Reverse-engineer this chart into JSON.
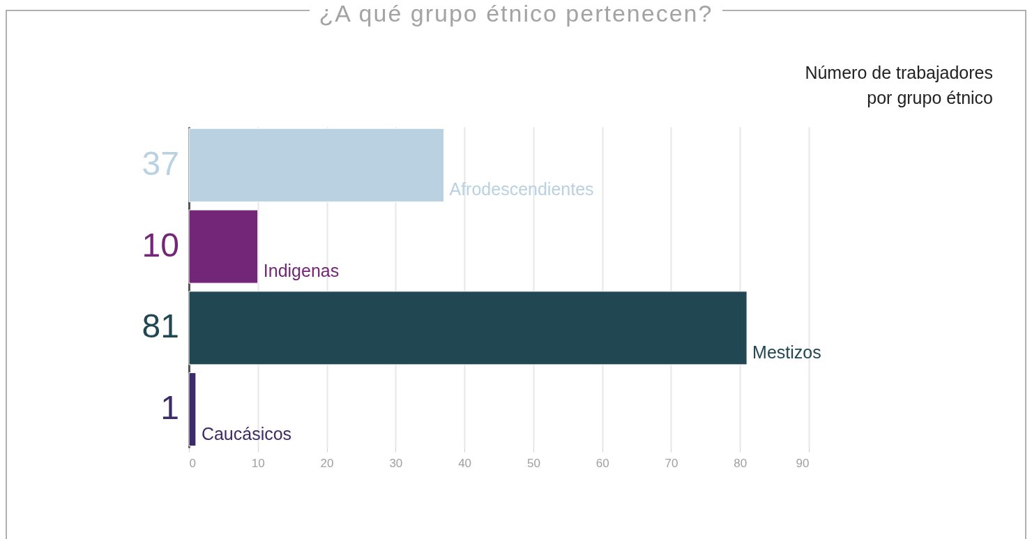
{
  "chart_data": {
    "type": "bar",
    "orientation": "horizontal",
    "title": "¿A qué grupo étnico pertenecen?",
    "subtitle": "Número de trabajadores\npor grupo étnico",
    "categories": [
      "Afrodescendientes",
      "Indigenas",
      "Mestizos",
      "Caucásicos"
    ],
    "values": [
      37,
      10,
      81,
      1
    ],
    "colors": [
      "#b9d1e0",
      "#732677",
      "#214752",
      "#3c2a6a"
    ],
    "xlim": [
      0,
      90
    ],
    "xticks": [
      0,
      10,
      20,
      30,
      40,
      50,
      60,
      70,
      80,
      90
    ],
    "grid": "x",
    "data_labels": true
  }
}
